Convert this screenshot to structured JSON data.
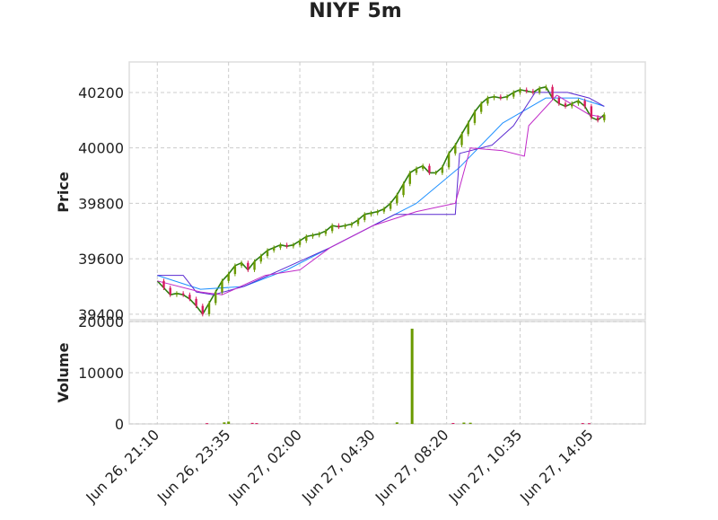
{
  "chart_data": {
    "type": "candlestick",
    "title": "NIYF 5m",
    "grid": true,
    "xticks": [
      "Jun 26, 21:10",
      "Jun 26, 23:35",
      "Jun 27, 02:00",
      "Jun 27, 04:30",
      "Jun 27, 08:20",
      "Jun 27, 10:35",
      "Jun 27, 14:05"
    ],
    "price_panel": {
      "ylabel": "Price",
      "ylim": [
        39380,
        40310
      ],
      "yticks": [
        39400,
        39600,
        39800,
        40000,
        40200
      ],
      "series": [
        {
          "kind": "close",
          "color": "#2e7d0f",
          "values": [
            [
              0,
              39520
            ],
            [
              3,
              39495
            ],
            [
              6,
              39470
            ],
            [
              9,
              39475
            ],
            [
              12,
              39470
            ],
            [
              15,
              39455
            ],
            [
              18,
              39430
            ],
            [
              21,
              39400
            ],
            [
              24,
              39440
            ],
            [
              27,
              39480
            ],
            [
              30,
              39520
            ],
            [
              33,
              39545
            ],
            [
              36,
              39575
            ],
            [
              39,
              39585
            ],
            [
              42,
              39560
            ],
            [
              45,
              39590
            ],
            [
              48,
              39610
            ],
            [
              51,
              39630
            ],
            [
              54,
              39640
            ],
            [
              57,
              39650
            ],
            [
              60,
              39645
            ],
            [
              63,
              39650
            ],
            [
              66,
              39665
            ],
            [
              69,
              39680
            ],
            [
              72,
              39685
            ],
            [
              75,
              39690
            ],
            [
              78,
              39700
            ],
            [
              81,
              39720
            ],
            [
              84,
              39715
            ],
            [
              87,
              39720
            ],
            [
              90,
              39725
            ],
            [
              93,
              39740
            ],
            [
              96,
              39760
            ],
            [
              99,
              39765
            ],
            [
              102,
              39770
            ],
            [
              105,
              39780
            ],
            [
              108,
              39800
            ],
            [
              111,
              39830
            ],
            [
              114,
              39870
            ],
            [
              117,
              39910
            ],
            [
              120,
              39925
            ],
            [
              123,
              39935
            ],
            [
              126,
              39910
            ],
            [
              129,
              39910
            ],
            [
              132,
              39930
            ],
            [
              135,
              39980
            ],
            [
              138,
              40010
            ],
            [
              141,
              40050
            ],
            [
              144,
              40090
            ],
            [
              147,
              40130
            ],
            [
              150,
              40160
            ],
            [
              153,
              40180
            ],
            [
              156,
              40185
            ],
            [
              159,
              40180
            ],
            [
              162,
              40185
            ],
            [
              165,
              40200
            ],
            [
              168,
              40210
            ],
            [
              171,
              40205
            ],
            [
              174,
              40200
            ],
            [
              177,
              40215
            ],
            [
              180,
              40220
            ],
            [
              183,
              40180
            ],
            [
              186,
              40160
            ],
            [
              189,
              40150
            ],
            [
              192,
              40160
            ],
            [
              195,
              40170
            ],
            [
              198,
              40150
            ],
            [
              201,
              40110
            ],
            [
              204,
              40100
            ],
            [
              207,
              40120
            ]
          ]
        },
        {
          "kind": "moving-average",
          "color": "#1e90ff",
          "values": [
            [
              0,
              39540
            ],
            [
              20,
              39490
            ],
            [
              40,
              39500
            ],
            [
              60,
              39560
            ],
            [
              80,
              39640
            ],
            [
              100,
              39720
            ],
            [
              120,
              39800
            ],
            [
              140,
              39930
            ],
            [
              160,
              40090
            ],
            [
              180,
              40180
            ],
            [
              195,
              40180
            ],
            [
              207,
              40150
            ]
          ]
        },
        {
          "kind": "moving-average",
          "color": "#5a2ad0",
          "values": [
            [
              0,
              39540
            ],
            [
              12,
              39540
            ],
            [
              18,
              39480
            ],
            [
              26,
              39470
            ],
            [
              40,
              39500
            ],
            [
              60,
              39570
            ],
            [
              80,
              39640
            ],
            [
              100,
              39720
            ],
            [
              110,
              39760
            ],
            [
              120,
              39760
            ],
            [
              138,
              39760
            ],
            [
              140,
              39980
            ],
            [
              155,
              40010
            ],
            [
              165,
              40080
            ],
            [
              175,
              40200
            ],
            [
              190,
              40200
            ],
            [
              200,
              40180
            ],
            [
              207,
              40150
            ]
          ]
        },
        {
          "kind": "moving-average",
          "color": "#c02ac8",
          "values": [
            [
              0,
              39520
            ],
            [
              20,
              39480
            ],
            [
              30,
              39470
            ],
            [
              50,
              39540
            ],
            [
              66,
              39560
            ],
            [
              80,
              39640
            ],
            [
              100,
              39720
            ],
            [
              120,
              39770
            ],
            [
              138,
              39800
            ],
            [
              145,
              40000
            ],
            [
              160,
              39990
            ],
            [
              170,
              39970
            ],
            [
              172,
              40080
            ],
            [
              185,
              40190
            ],
            [
              200,
              40120
            ],
            [
              207,
              40110
            ]
          ]
        }
      ]
    },
    "volume_panel": {
      "ylabel": "Volume",
      "ylim": [
        0,
        20000
      ],
      "yticks": [
        0,
        10000,
        20000
      ],
      "bars": [
        {
          "x": 23,
          "value": 150,
          "color": "#d81b60"
        },
        {
          "x": 31,
          "value": 300,
          "color": "#6a9a00"
        },
        {
          "x": 33,
          "value": 450,
          "color": "#6a9a00"
        },
        {
          "x": 44,
          "value": 200,
          "color": "#d81b60"
        },
        {
          "x": 46,
          "value": 160,
          "color": "#d81b60"
        },
        {
          "x": 111,
          "value": 300,
          "color": "#6a9a00"
        },
        {
          "x": 118,
          "value": 18600,
          "color": "#6a9a00"
        },
        {
          "x": 137,
          "value": 180,
          "color": "#d81b60"
        },
        {
          "x": 142,
          "value": 260,
          "color": "#6a9a00"
        },
        {
          "x": 145,
          "value": 230,
          "color": "#6a9a00"
        },
        {
          "x": 197,
          "value": 160,
          "color": "#d81b60"
        },
        {
          "x": 200,
          "value": 140,
          "color": "#d81b60"
        }
      ]
    },
    "x_range": [
      -13,
      226
    ],
    "xtick_index": [
      0,
      33,
      66,
      100,
      134,
      168,
      201
    ]
  },
  "colors": {
    "up": "#6a9a00",
    "down": "#d81b60",
    "grid": "#cccccc",
    "frame": "#dddddd"
  }
}
